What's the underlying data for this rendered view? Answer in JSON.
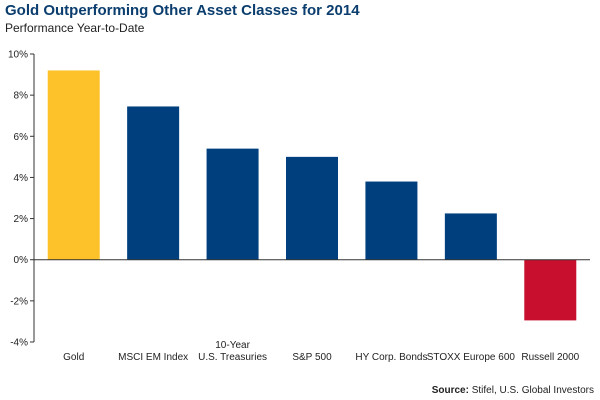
{
  "header": {
    "title": "Gold Outperforming Other Asset Classes for 2014",
    "subtitle": "Performance Year-to-Date"
  },
  "footer": {
    "source_label": "Source:",
    "source_text": "Stifel, U.S. Global Investors"
  },
  "colors": {
    "gold": "#FDC229",
    "positive": "#003F7D",
    "negative": "#C8102E",
    "axis": "#333333",
    "grid": "#cccccc",
    "title": "#0b3e6e"
  },
  "chart_data": {
    "type": "bar",
    "title": "Gold Outperforming Other Asset Classes for 2014",
    "subtitle": "Performance Year-to-Date",
    "categories": [
      [
        "Gold"
      ],
      [
        "MSCI EM Index"
      ],
      [
        "10-Year",
        "U.S. Treasuries"
      ],
      [
        "S&P 500"
      ],
      [
        "HY Corp. Bonds"
      ],
      [
        "STOXX Europe 600"
      ],
      [
        "Russell 2000"
      ]
    ],
    "values": [
      9.2,
      7.45,
      5.4,
      5.0,
      3.8,
      2.25,
      -2.95
    ],
    "bar_colors": [
      "gold",
      "positive",
      "positive",
      "positive",
      "positive",
      "positive",
      "negative"
    ],
    "ylim": [
      -4,
      10
    ],
    "yticks": [
      -4,
      -2,
      0,
      2,
      4,
      6,
      8,
      10
    ],
    "ytick_labels": [
      "-4%",
      "-2%",
      "0%",
      "2%",
      "4%",
      "6%",
      "8%",
      "10%"
    ],
    "xlabel": "",
    "ylabel": "",
    "grid": false,
    "legend": "none"
  }
}
